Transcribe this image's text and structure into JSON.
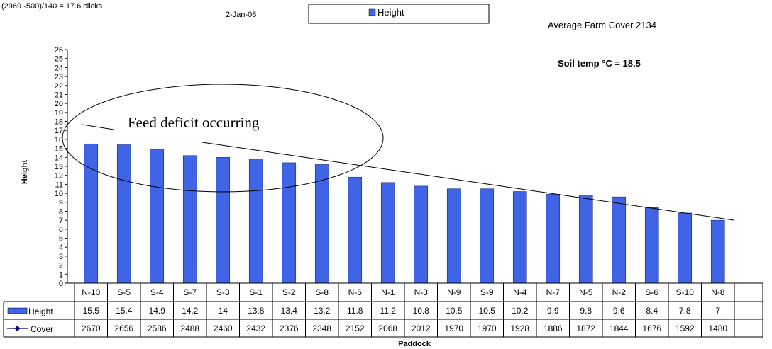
{
  "header": {
    "note": "(2969 -500)/140 = 17.6 clicks",
    "date": "2-Jan-08",
    "average_cover": "Average Farm Cover 2134",
    "soil_temp": "Soil temp °C = 18.5"
  },
  "annotation": {
    "text": "Feed deficit occurring"
  },
  "colors": {
    "bar": "#3f64e6",
    "bar_stroke": "#1a2a80",
    "cover_line": "#000080"
  },
  "chart_data": {
    "type": "bar",
    "title": "",
    "xlabel": "Paddock",
    "ylabel": "Height",
    "ylim": [
      0,
      26
    ],
    "y_ticks": [
      0,
      1,
      2,
      3,
      4,
      5,
      6,
      7,
      8,
      9,
      10,
      11,
      12,
      13,
      14,
      15,
      16,
      17,
      18,
      19,
      20,
      21,
      22,
      23,
      24,
      25,
      26
    ],
    "legend_position": "top-center",
    "categories": [
      "N-10",
      "S-5",
      "S-4",
      "S-7",
      "S-3",
      "S-1",
      "S-2",
      "S-8",
      "N-6",
      "N-1",
      "N-3",
      "N-9",
      "S-9",
      "N-4",
      "N-7",
      "N-5",
      "N-2",
      "S-6",
      "S-10",
      "N-8"
    ],
    "series": [
      {
        "name": "Height",
        "type": "bar",
        "values": [
          15.5,
          15.4,
          14.9,
          14.2,
          14,
          13.8,
          13.4,
          13.2,
          11.8,
          11.2,
          10.8,
          10.5,
          10.5,
          10.2,
          9.9,
          9.8,
          9.6,
          8.4,
          7.8,
          7
        ]
      },
      {
        "name": "Cover",
        "type": "line",
        "values": [
          2670,
          2656,
          2586,
          2488,
          2460,
          2432,
          2376,
          2348,
          2152,
          2068,
          2012,
          1970,
          1970,
          1928,
          1886,
          1872,
          1844,
          1676,
          1592,
          1480
        ]
      }
    ],
    "data_table": true
  }
}
